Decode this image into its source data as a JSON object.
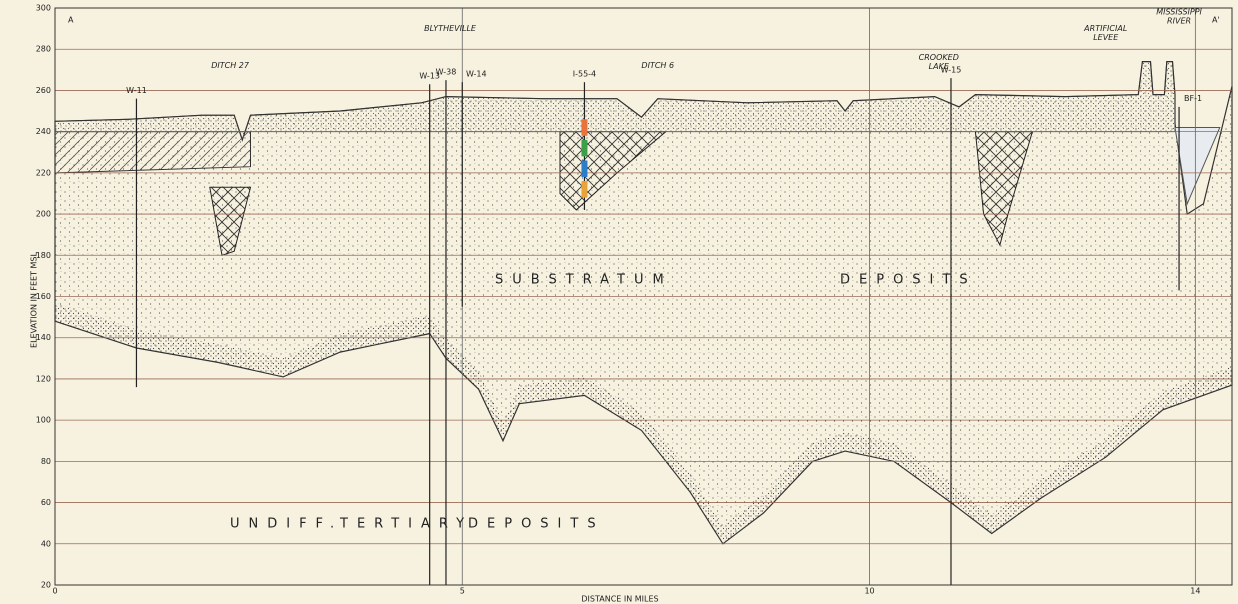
{
  "section": {
    "start_label": "A",
    "end_label": "A'"
  },
  "axes": {
    "y_label": "ELEVATION IN FEET MSL",
    "x_label": "DISTANCE IN MILES",
    "ylim": [
      20,
      300
    ],
    "yticks": [
      20,
      40,
      60,
      80,
      100,
      120,
      140,
      160,
      180,
      200,
      220,
      240,
      260,
      280,
      300
    ],
    "xlim": [
      0,
      14.45
    ],
    "xticks": [
      0,
      5,
      10,
      14
    ]
  },
  "wells": [
    "W-11",
    "W-13",
    "W-38",
    "W-14",
    "I-55-4",
    "W-15",
    "BF-1"
  ],
  "features": [
    [
      "DITCH 27"
    ],
    [
      "BLYTHEVILLE"
    ],
    [
      "DITCH 6"
    ],
    [
      "CROOKED",
      "LAKE"
    ],
    [
      "ARTIFICIAL",
      "LEVEE"
    ],
    [
      "MISSISSIPPI",
      "RIVER"
    ]
  ],
  "units": [
    "SUBSTRATUM",
    "DEPOSITS",
    "UNDIFF.",
    "TERTIARY",
    "DEPOSITS"
  ]
}
